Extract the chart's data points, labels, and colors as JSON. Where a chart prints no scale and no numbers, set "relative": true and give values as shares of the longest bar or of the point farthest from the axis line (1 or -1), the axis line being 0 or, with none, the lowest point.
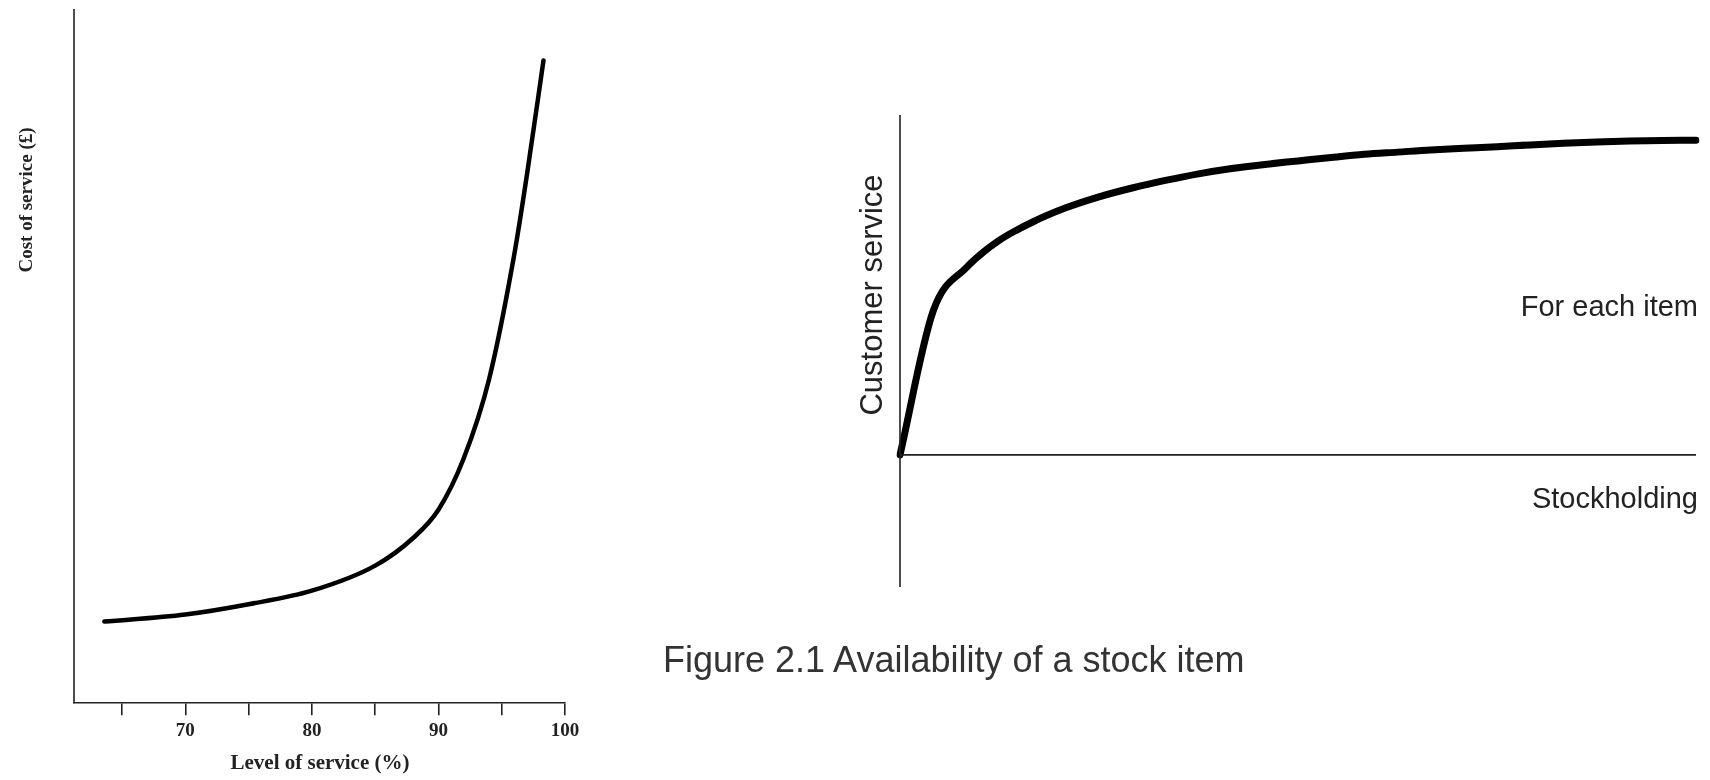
{
  "chart_data": [
    {
      "type": "line",
      "xlabel": "Level of service (%)",
      "ylabel": "Cost of service (£)",
      "relative": true,
      "tick_labels": "x",
      "color": "#000000",
      "x": [
        63.6,
        70,
        75,
        80,
        85,
        88,
        90,
        92,
        94,
        96,
        97,
        98.3
      ],
      "values": [
        0.127,
        0.138,
        0.154,
        0.175,
        0.214,
        0.257,
        0.301,
        0.381,
        0.504,
        0.699,
        0.823,
        1
      ],
      "xlim": [
        61.2,
        100
      ],
      "xticks": [
        {
          "value": 65,
          "label": null
        },
        70,
        {
          "value": 75,
          "label": null
        },
        80,
        {
          "value": 85,
          "label": null
        },
        90,
        {
          "value": 95,
          "label": null
        },
        100
      ]
    },
    {
      "type": "line",
      "xlabel": "Stockholding",
      "ylabel": "Customer service",
      "relative": true,
      "tick_labels": false,
      "color": "#000000",
      "categories": [
        null,
        null,
        null,
        null,
        null,
        null,
        null,
        null,
        null,
        null,
        null,
        null,
        null,
        null,
        null,
        null,
        null,
        null,
        null,
        null,
        null,
        null,
        null,
        null,
        null
      ],
      "values": [
        0,
        0.457,
        0.595,
        0.682,
        0.74,
        0.785,
        0.82,
        0.848,
        0.872,
        0.893,
        0.91,
        0.923,
        0.934,
        0.945,
        0.955,
        0.962,
        0.969,
        0.974,
        0.979,
        0.985,
        0.99,
        0.994,
        0.997,
        0.999,
        1
      ],
      "annotations": [
        "For each item",
        "Figure 2.1 Availability of a stock item"
      ]
    }
  ]
}
